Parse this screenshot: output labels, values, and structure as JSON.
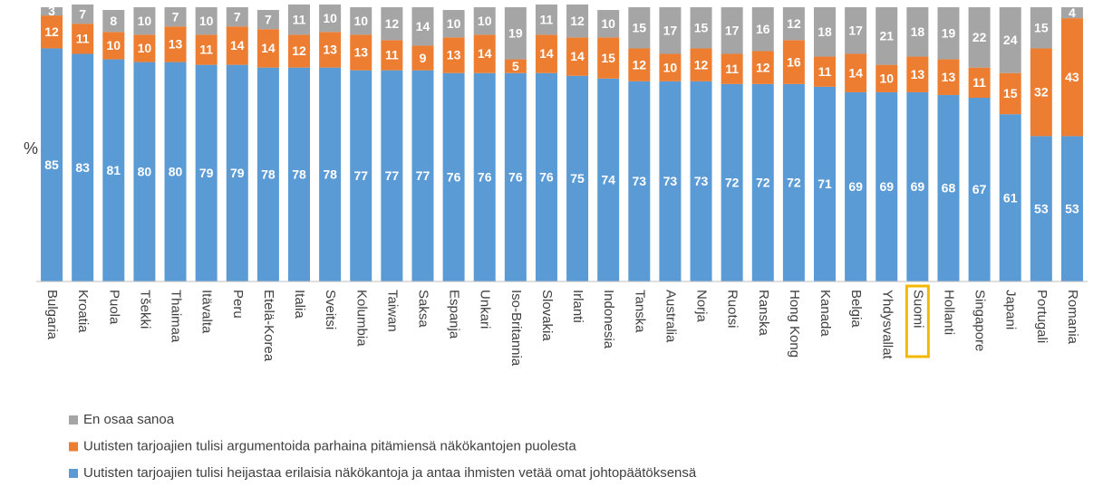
{
  "chart_data": {
    "type": "stacked_bar",
    "y_label": "%",
    "categories": [
      "Bulgaria",
      "Kroatia",
      "Puola",
      "Tšekki",
      "Thaimaa",
      "Itävalta",
      "Peru",
      "Etelä-Korea",
      "Italia",
      "Sveitsi",
      "Kolumbia",
      "Taiwan",
      "Saksa",
      "Espanja",
      "Unkari",
      "Iso-Britannia",
      "Slovakia",
      "Irlanti",
      "Indonesia",
      "Tanska",
      "Australia",
      "Norja",
      "Ruotsi",
      "Ranska",
      "Hong Kong",
      "Kanada",
      "Belgia",
      "Yhdysvallat",
      "Suomi",
      "Hollanti",
      "Singapore",
      "Japani",
      "Portugali",
      "Romania"
    ],
    "series": [
      {
        "name": "Uutisten tarjoajien tulisi heijastaa erilaisia näkökantoja ja antaa ihmisten vetää omat johtopäätöksensä",
        "color": "#5b9bd5",
        "values": [
          85,
          83,
          81,
          80,
          80,
          79,
          79,
          78,
          78,
          78,
          77,
          77,
          77,
          76,
          76,
          76,
          76,
          75,
          74,
          73,
          73,
          73,
          72,
          72,
          72,
          71,
          69,
          69,
          69,
          68,
          67,
          61,
          53,
          53
        ]
      },
      {
        "name": "Uutisten tarjoajien tulisi argumentoida parhaina pitämiensä näkökantojen puolesta",
        "color": "#ed7d31",
        "values": [
          12,
          11,
          10,
          10,
          13,
          11,
          14,
          14,
          12,
          13,
          13,
          11,
          9,
          13,
          14,
          5,
          14,
          14,
          15,
          12,
          10,
          12,
          11,
          12,
          16,
          11,
          14,
          10,
          13,
          13,
          11,
          15,
          32,
          43
        ]
      },
      {
        "name": "En osaa sanoa",
        "color": "#a5a5a5",
        "values": [
          3,
          7,
          8,
          10,
          7,
          10,
          7,
          7,
          11,
          10,
          10,
          12,
          14,
          10,
          10,
          19,
          11,
          12,
          10,
          15,
          17,
          15,
          17,
          16,
          12,
          18,
          17,
          21,
          18,
          19,
          22,
          24,
          15,
          4
        ]
      }
    ],
    "ylim": [
      0,
      100
    ],
    "highlight": "Suomi",
    "highlight_color": "#f5b800"
  }
}
